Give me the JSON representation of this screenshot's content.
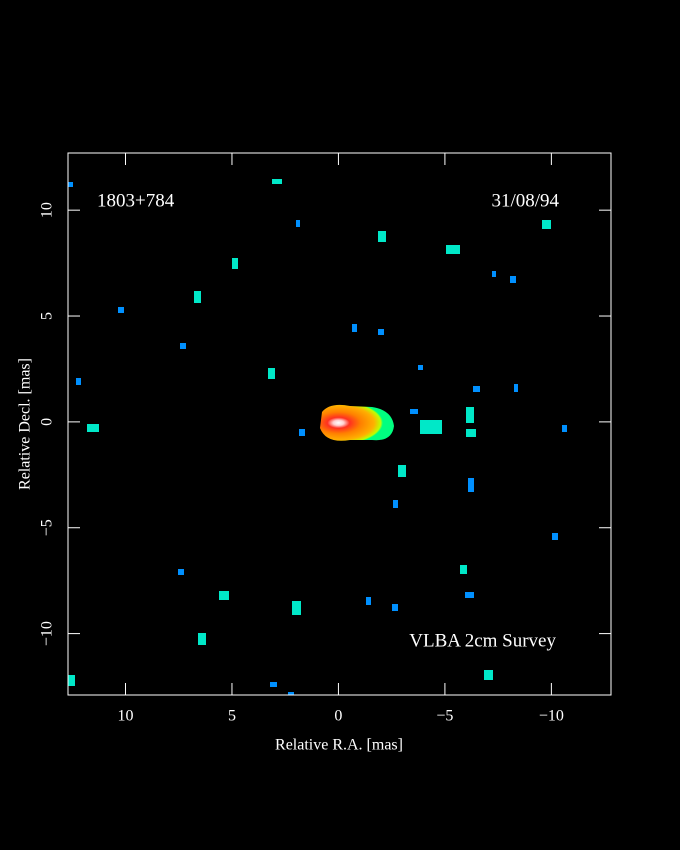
{
  "chart_data": {
    "type": "image",
    "source": "1803+784",
    "date": "31/08/94",
    "annotation": "VLBA 2cm Survey",
    "x_label": "Relative R.A. [mas]",
    "y_label": "Relative Decl. [mas]",
    "xlim": [
      12.7,
      -12.8
    ],
    "ylim": [
      -12.9,
      12.7
    ],
    "xticks": [
      10,
      5,
      0,
      {
        "value": -5,
        "label": "−5"
      },
      {
        "value": -10,
        "label": "−10"
      }
    ],
    "yticks": [
      {
        "value": -10,
        "label": "−10"
      },
      {
        "value": -5,
        "label": "−5"
      },
      0,
      5,
      10
    ]
  }
}
